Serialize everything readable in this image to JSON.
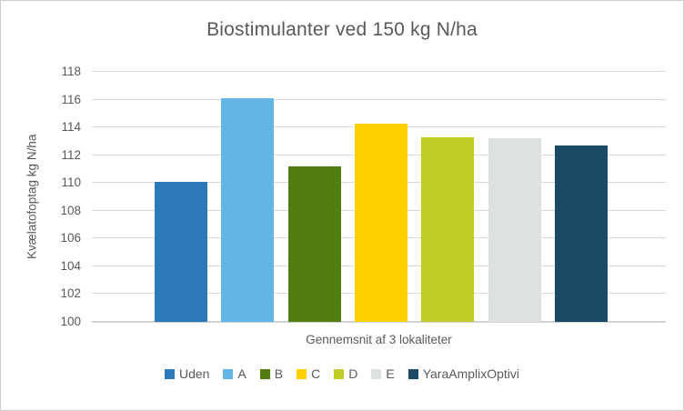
{
  "chart_data": {
    "type": "bar",
    "title": "Biostimulanter ved 150 kg N/ha",
    "categories": [
      "Uden",
      "A",
      "B",
      "C",
      "D",
      "E",
      "YaraAmplixOptivi"
    ],
    "values": [
      110.1,
      116.1,
      111.2,
      114.3,
      113.3,
      113.2,
      112.7
    ],
    "colors": [
      "#2E79B9",
      "#62B5E5",
      "#507D0D",
      "#FFCF00",
      "#C1CC28",
      "#DCE2E2",
      "#1C4966"
    ],
    "xlabel": "Gennemsnit af 3 lokaliteter",
    "ylabel": "Kvælatofoptag kg N/ha",
    "ylim": [
      100,
      118
    ],
    "yticks": [
      118,
      116,
      114,
      112,
      110,
      108,
      106,
      104,
      102,
      100
    ],
    "grid": true,
    "legend_position": "bottom",
    "text_color": "#595959",
    "gridline_color": "#D9D9D9"
  }
}
